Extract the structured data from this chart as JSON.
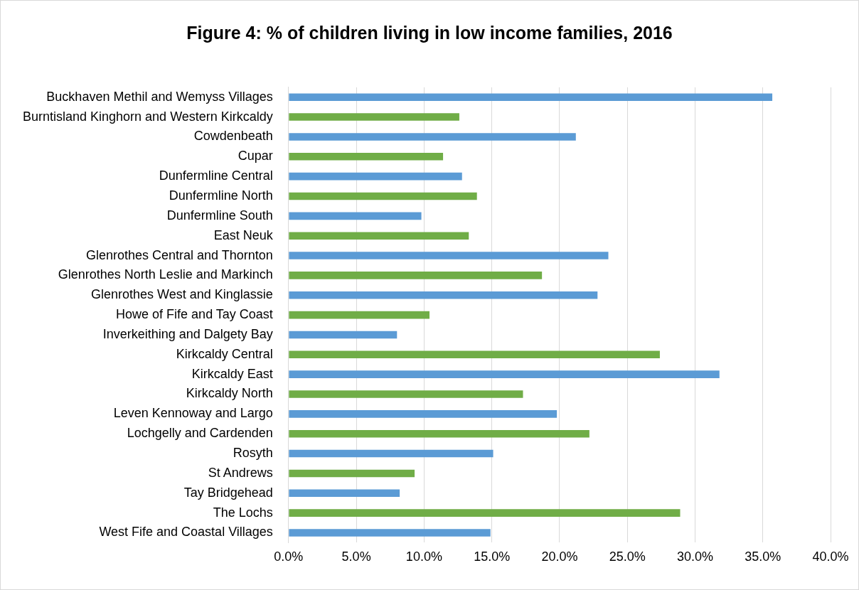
{
  "chart_data": {
    "type": "bar",
    "orientation": "horizontal",
    "title": "Figure 4: % of children living in low income families, 2016",
    "categories": [
      "Buckhaven Methil and Wemyss Villages",
      "Burntisland Kinghorn and Western Kirkcaldy",
      "Cowdenbeath",
      "Cupar",
      "Dunfermline Central",
      "Dunfermline North",
      "Dunfermline South",
      "East Neuk",
      "Glenrothes Central and Thornton",
      "Glenrothes North Leslie and Markinch",
      "Glenrothes West and Kinglassie",
      "Howe of Fife and Tay Coast",
      "Inverkeithing and Dalgety Bay",
      "Kirkcaldy Central",
      "Kirkcaldy East",
      "Kirkcaldy North",
      "Leven Kennoway and Largo",
      "Lochgelly and Cardenden",
      "Rosyth",
      "St Andrews",
      "Tay Bridgehead",
      "The Lochs",
      "West Fife and Coastal Villages"
    ],
    "values": [
      35.7,
      12.6,
      21.2,
      11.4,
      12.8,
      13.9,
      9.8,
      13.3,
      23.6,
      18.7,
      22.8,
      10.4,
      8.0,
      27.4,
      31.8,
      17.3,
      19.8,
      22.2,
      15.1,
      9.3,
      8.2,
      28.9,
      14.9
    ],
    "colors": [
      "#5b9bd5",
      "#70ad47",
      "#5b9bd5",
      "#70ad47",
      "#5b9bd5",
      "#70ad47",
      "#5b9bd5",
      "#70ad47",
      "#5b9bd5",
      "#70ad47",
      "#5b9bd5",
      "#70ad47",
      "#5b9bd5",
      "#70ad47",
      "#5b9bd5",
      "#70ad47",
      "#5b9bd5",
      "#70ad47",
      "#5b9bd5",
      "#70ad47",
      "#5b9bd5",
      "#70ad47",
      "#5b9bd5"
    ],
    "xlim": [
      0,
      40
    ],
    "xticks": [
      {
        "value": 0,
        "label": "0.0%"
      },
      {
        "value": 5,
        "label": "5.0%"
      },
      {
        "value": 10,
        "label": "10.0%"
      },
      {
        "value": 15,
        "label": "15.0%"
      },
      {
        "value": 20,
        "label": "20.0%"
      },
      {
        "value": 25,
        "label": "25.0%"
      },
      {
        "value": 30,
        "label": "30.0%"
      },
      {
        "value": 35,
        "label": "35.0%"
      },
      {
        "value": 40,
        "label": "40.0%"
      }
    ],
    "grid": "x",
    "legend": false
  }
}
